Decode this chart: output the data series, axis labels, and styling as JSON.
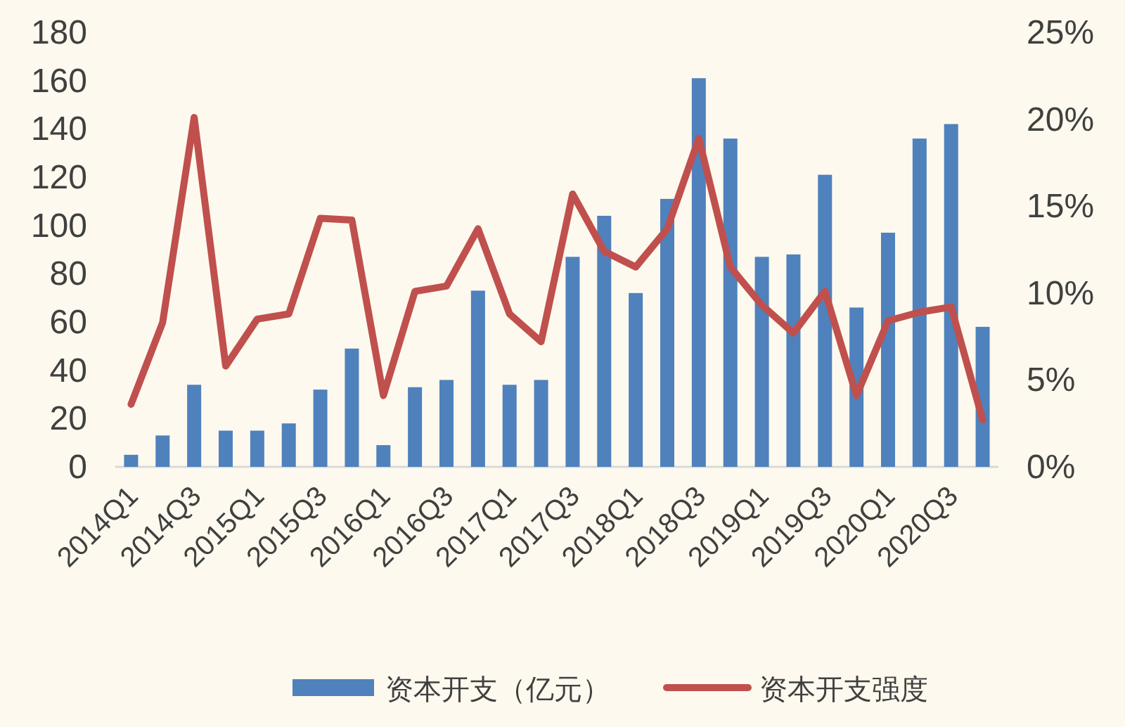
{
  "chart_data": {
    "type": "bar",
    "categories": [
      "2014Q1",
      null,
      "2014Q3",
      null,
      "2015Q1",
      null,
      "2015Q3",
      null,
      "2016Q1",
      null,
      "2016Q3",
      null,
      "2017Q1",
      null,
      "2017Q3",
      null,
      "2018Q1",
      null,
      "2018Q3",
      null,
      "2019Q1",
      null,
      "2019Q3",
      null,
      "2020Q1",
      null,
      "2020Q3",
      null
    ],
    "series": [
      {
        "name": "资本开支（亿元）",
        "color": "#4f81bd",
        "values": [
          5,
          13,
          34,
          15,
          15,
          18,
          32,
          49,
          9,
          33,
          36,
          73,
          34,
          36,
          87,
          104,
          72,
          111,
          161,
          136,
          87,
          88,
          121,
          66,
          97,
          136,
          142,
          58
        ]
      },
      {
        "name": "资本开支强度",
        "type": "line",
        "axis": "y2",
        "color": "#c0504d",
        "values": [
          3.6,
          8.3,
          20.1,
          5.8,
          8.5,
          8.8,
          14.3,
          14.2,
          4.1,
          10.1,
          10.4,
          13.7,
          8.8,
          7.2,
          15.7,
          12.4,
          11.5,
          13.7,
          18.9,
          11.5,
          9.3,
          7.7,
          10.1,
          4.1,
          8.4,
          8.9,
          9.2,
          2.7
        ]
      }
    ],
    "ylim": [
      0,
      180
    ],
    "yticks": [
      0,
      20,
      40,
      60,
      80,
      100,
      120,
      140,
      160,
      180
    ],
    "y2lim": [
      0,
      25
    ],
    "y2ticks": [
      {
        "value": 0,
        "label": "0%"
      },
      {
        "value": 5,
        "label": "5%"
      },
      {
        "value": 10,
        "label": "10%"
      },
      {
        "value": 15,
        "label": "15%"
      },
      {
        "value": 20,
        "label": "20%"
      },
      {
        "value": 25,
        "label": "25%"
      }
    ],
    "grid": false,
    "legend": "bottom",
    "marker": "none",
    "line_style": "solid"
  }
}
